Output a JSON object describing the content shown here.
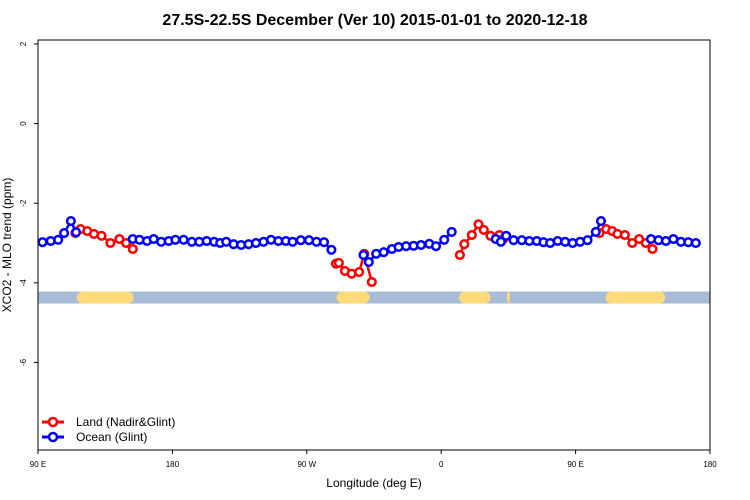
{
  "chart_data": {
    "type": "line",
    "title": "27.5S-22.5S December (Ver 10)   2015-01-01 to 2020-12-18",
    "xlabel": "Longitude (deg E)",
    "ylabel": "XCO2 - MLO trend (ppm)",
    "x_ticks": [
      {
        "value": 90,
        "label": "90 E"
      },
      {
        "value": 180,
        "label": "180"
      },
      {
        "value": 270,
        "label": "90 W"
      },
      {
        "value": 360,
        "label": "0"
      },
      {
        "value": 450,
        "label": "90 E"
      },
      {
        "value": 540,
        "label": "180"
      }
    ],
    "y_ticks": [
      {
        "value": 2,
        "label": "2"
      },
      {
        "value": 0,
        "label": "0"
      },
      {
        "value": -2,
        "label": "-2"
      },
      {
        "value": -4,
        "label": "-4"
      },
      {
        "value": -6,
        "label": "-6"
      }
    ],
    "xlim": [
      90,
      540
    ],
    "ylim": [
      -8.2,
      2.1
    ],
    "grid": false,
    "legend_position": "bottom-left",
    "land_strip": {
      "y": -4.37,
      "ocean_color": "#a8bcd8",
      "land_color": "#ffd97a",
      "land_segments": [
        [
          116,
          154
        ],
        [
          290,
          312
        ],
        [
          372,
          393
        ],
        [
          404,
          406
        ],
        [
          470,
          510
        ]
      ]
    },
    "series": [
      {
        "name": "Land (Nadir&Glint)",
        "color": "#ff0000",
        "segments": [
          [
            [
              115.0,
              -2.75
            ],
            [
              118.5,
              -2.65
            ],
            [
              123.0,
              -2.7
            ],
            [
              127.5,
              -2.77
            ],
            [
              132.5,
              -2.82
            ],
            [
              138.5,
              -3.0
            ],
            [
              144.5,
              -2.9
            ],
            [
              149.0,
              -3.0
            ],
            [
              153.5,
              -3.15
            ]
          ],
          [
            [
              289.5,
              -3.52
            ],
            [
              291.5,
              -3.5
            ],
            [
              295.5,
              -3.7
            ],
            [
              300.0,
              -3.77
            ],
            [
              305.0,
              -3.73
            ],
            [
              308.5,
              -3.27
            ],
            [
              313.5,
              -3.98
            ]
          ],
          [
            [
              372.5,
              -3.3
            ],
            [
              375.5,
              -3.03
            ],
            [
              380.5,
              -2.8
            ],
            [
              385.0,
              -2.53
            ],
            [
              388.5,
              -2.67
            ],
            [
              393.0,
              -2.82
            ],
            [
              399.0,
              -2.8
            ],
            [
              401.5,
              -2.9
            ]
          ],
          [
            [
              466.0,
              -2.75
            ],
            [
              470.5,
              -2.65
            ],
            [
              474.5,
              -2.7
            ],
            [
              478.0,
              -2.77
            ],
            [
              483.0,
              -2.8
            ],
            [
              488.0,
              -3.0
            ],
            [
              492.5,
              -2.9
            ],
            [
              497.0,
              -3.0
            ],
            [
              501.5,
              -3.15
            ]
          ]
        ]
      },
      {
        "name": "Ocean (Glint)",
        "color": "#0000ff",
        "segments": [
          [
            [
              93.0,
              -2.98
            ],
            [
              98.5,
              -2.95
            ],
            [
              103.5,
              -2.92
            ],
            [
              107.5,
              -2.75
            ],
            [
              112.0,
              -2.45
            ],
            [
              115.5,
              -2.73
            ]
          ],
          [
            [
              153.5,
              -2.9
            ],
            [
              158.0,
              -2.92
            ],
            [
              163.0,
              -2.95
            ],
            [
              167.5,
              -2.9
            ],
            [
              172.5,
              -2.97
            ],
            [
              177.5,
              -2.95
            ],
            [
              182.0,
              -2.92
            ],
            [
              187.5,
              -2.92
            ],
            [
              193.0,
              -2.97
            ],
            [
              198.0,
              -2.97
            ],
            [
              203.0,
              -2.95
            ],
            [
              208.0,
              -2.97
            ],
            [
              212.0,
              -3.0
            ],
            [
              216.0,
              -2.97
            ],
            [
              221.0,
              -3.03
            ],
            [
              226.0,
              -3.05
            ],
            [
              231.0,
              -3.03
            ],
            [
              236.0,
              -3.0
            ],
            [
              241.0,
              -2.97
            ],
            [
              246.0,
              -2.92
            ],
            [
              251.0,
              -2.95
            ],
            [
              256.0,
              -2.95
            ],
            [
              260.5,
              -2.97
            ],
            [
              266.0,
              -2.93
            ],
            [
              271.5,
              -2.93
            ],
            [
              276.5,
              -2.97
            ],
            [
              281.5,
              -2.98
            ],
            [
              286.5,
              -3.17
            ]
          ],
          [
            [
              308.0,
              -3.3
            ],
            [
              311.5,
              -3.48
            ],
            [
              316.5,
              -3.27
            ],
            [
              321.5,
              -3.23
            ],
            [
              327.0,
              -3.15
            ],
            [
              331.5,
              -3.1
            ],
            [
              336.5,
              -3.08
            ],
            [
              341.5,
              -3.07
            ],
            [
              346.5,
              -3.05
            ],
            [
              352.0,
              -3.02
            ],
            [
              356.5,
              -3.08
            ],
            [
              362.0,
              -2.92
            ],
            [
              367.0,
              -2.72
            ]
          ],
          [
            [
              396.5,
              -2.9
            ],
            [
              400.0,
              -2.97
            ],
            [
              403.5,
              -2.82
            ],
            [
              408.5,
              -2.93
            ],
            [
              414.0,
              -2.93
            ],
            [
              419.0,
              -2.95
            ],
            [
              424.0,
              -2.95
            ],
            [
              428.5,
              -2.98
            ],
            [
              433.0,
              -3.0
            ],
            [
              438.0,
              -2.95
            ],
            [
              443.0,
              -2.97
            ],
            [
              448.0,
              -3.0
            ],
            [
              453.0,
              -2.97
            ],
            [
              458.0,
              -2.93
            ],
            [
              463.5,
              -2.72
            ],
            [
              467.0,
              -2.45
            ]
          ],
          [
            [
              500.5,
              -2.9
            ],
            [
              505.5,
              -2.93
            ],
            [
              510.5,
              -2.95
            ],
            [
              515.5,
              -2.9
            ],
            [
              520.5,
              -2.97
            ],
            [
              525.5,
              -2.98
            ],
            [
              530.5,
              -3.0
            ]
          ]
        ]
      }
    ]
  }
}
